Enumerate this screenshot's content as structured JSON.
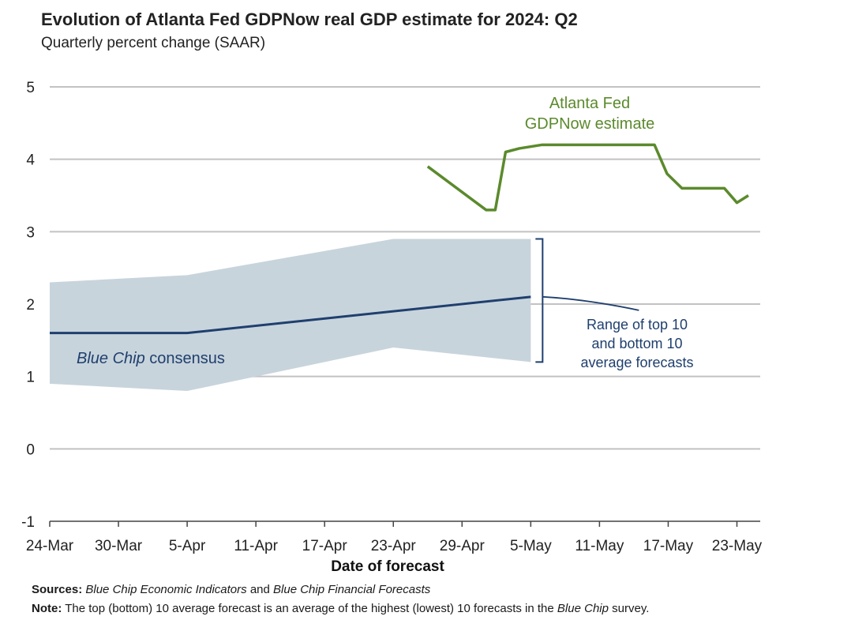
{
  "chart_data": {
    "type": "line",
    "title": "Evolution of Atlanta Fed GDPNow real GDP estimate for 2024: Q2",
    "subtitle": "Quarterly percent change (SAAR)",
    "xlabel": "Date of forecast",
    "ylabel": "",
    "ylim": [
      -1,
      5
    ],
    "yticks": [
      "5",
      "4",
      "3",
      "2",
      "1",
      "0",
      "-1"
    ],
    "ytick_values": [
      5,
      4,
      3,
      2,
      1,
      0,
      -1
    ],
    "xlim_days": [
      0,
      61
    ],
    "xticks": [
      {
        "label": "24-Mar",
        "day": 0
      },
      {
        "label": "30-Mar",
        "day": 6
      },
      {
        "label": "5-Apr",
        "day": 12
      },
      {
        "label": "11-Apr",
        "day": 18
      },
      {
        "label": "17-Apr",
        "day": 24
      },
      {
        "label": "23-Apr",
        "day": 30
      },
      {
        "label": "29-Apr",
        "day": 36
      },
      {
        "label": "5-May",
        "day": 42
      },
      {
        "label": "11-May",
        "day": 48
      },
      {
        "label": "17-May",
        "day": 54
      },
      {
        "label": "23-May",
        "day": 60
      }
    ],
    "series": [
      {
        "name": "Blue Chip consensus",
        "color": "#1f3f6e",
        "x": [
          0,
          12,
          42
        ],
        "values": [
          1.6,
          1.6,
          2.1
        ]
      },
      {
        "name": "Atlanta Fed GDPNow estimate",
        "color": "#5b8a2c",
        "x": [
          33,
          38.1,
          38.9,
          39.8,
          41,
          43,
          45,
          48,
          51.9,
          52.8,
          53.9,
          55.2,
          58.2,
          58.9,
          60,
          61
        ],
        "values": [
          3.9,
          3.3,
          3.3,
          4.1,
          4.15,
          4.2,
          4.2,
          4.2,
          4.2,
          4.2,
          3.8,
          3.6,
          3.6,
          3.6,
          3.4,
          3.5
        ]
      }
    ],
    "range_band": {
      "name": "Range of top 10 and bottom 10 average forecasts",
      "color": "#c8d4dc",
      "x": [
        0,
        12,
        30,
        42
      ],
      "upper": [
        2.3,
        2.4,
        2.9,
        2.9
      ],
      "lower": [
        0.9,
        0.8,
        1.4,
        1.2
      ]
    },
    "annotations": {
      "gdpnow_label": [
        "Atlanta Fed",
        "GDPNow estimate"
      ],
      "bluechip_label_italic": "Blue Chip",
      "bluechip_label_rest": "consensus",
      "range_label": [
        "Range of top 10",
        "and bottom 10",
        "average forecasts"
      ]
    }
  },
  "footer": {
    "sources_label": "Sources:",
    "sources_italic_1": "Blue Chip Economic Indicators",
    "sources_and": "and",
    "sources_italic_2": "Blue Chip Financial Forecasts",
    "note_label": "Note:",
    "note_text": "The top (bottom) 10 average forecast is an average of the highest (lowest) 10 forecasts in the",
    "note_italic": "Blue Chip",
    "note_tail": "survey."
  }
}
